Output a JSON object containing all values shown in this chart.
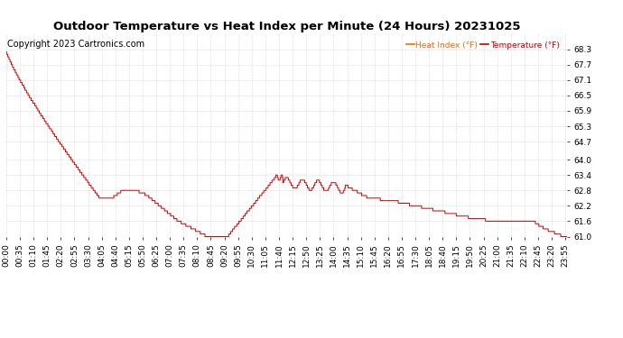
{
  "title": "Outdoor Temperature vs Heat Index per Minute (24 Hours) 20231025",
  "copyright": "Copyright 2023 Cartronics.com",
  "legend_heat": "Heat Index (°F)",
  "legend_temp": "Temperature (°F)",
  "legend_heat_color": "#ff6600",
  "legend_temp_color": "#cc0000",
  "line_color": "#cc0000",
  "background_color": "#ffffff",
  "grid_color": "#bbbbbb",
  "title_color": "#000000",
  "copyright_color": "#000000",
  "ylim_min": 61.0,
  "ylim_max": 68.9,
  "yticks": [
    61.0,
    61.6,
    62.2,
    62.8,
    63.4,
    64.0,
    64.7,
    65.3,
    65.9,
    66.5,
    67.1,
    67.7,
    68.3
  ],
  "total_minutes": 1440,
  "title_fontsize": 9.5,
  "axis_fontsize": 6.5,
  "copyright_fontsize": 7
}
